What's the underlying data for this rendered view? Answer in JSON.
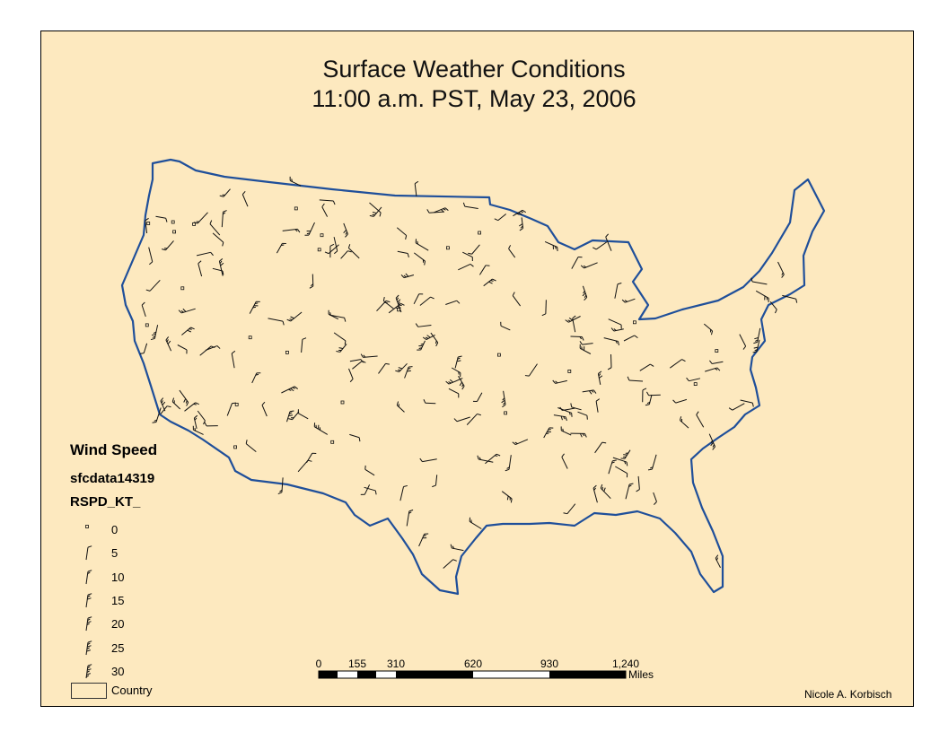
{
  "title": {
    "line1": "Surface Weather Conditions",
    "line2": "11:00 a.m. PST, May 23, 2006"
  },
  "legend": {
    "title": "Wind Speed",
    "layer": "sfcdata14319",
    "field": "RSPD_KT_",
    "classes": [
      {
        "label": "0",
        "speed": 0
      },
      {
        "label": "5",
        "speed": 5
      },
      {
        "label": "10",
        "speed": 10
      },
      {
        "label": "15",
        "speed": 15
      },
      {
        "label": "20",
        "speed": 20
      },
      {
        "label": "25",
        "speed": 25
      },
      {
        "label": "30",
        "speed": 30
      }
    ],
    "country_label": "Country"
  },
  "scale_bar": {
    "labels": [
      "0",
      "155",
      "310",
      "620",
      "930",
      "1,240"
    ],
    "units": "Miles"
  },
  "author": "Nicole A. Korbisch",
  "colors": {
    "background": "#fde9bf",
    "coastline": "#1f4f9a",
    "barb": "#111111"
  }
}
